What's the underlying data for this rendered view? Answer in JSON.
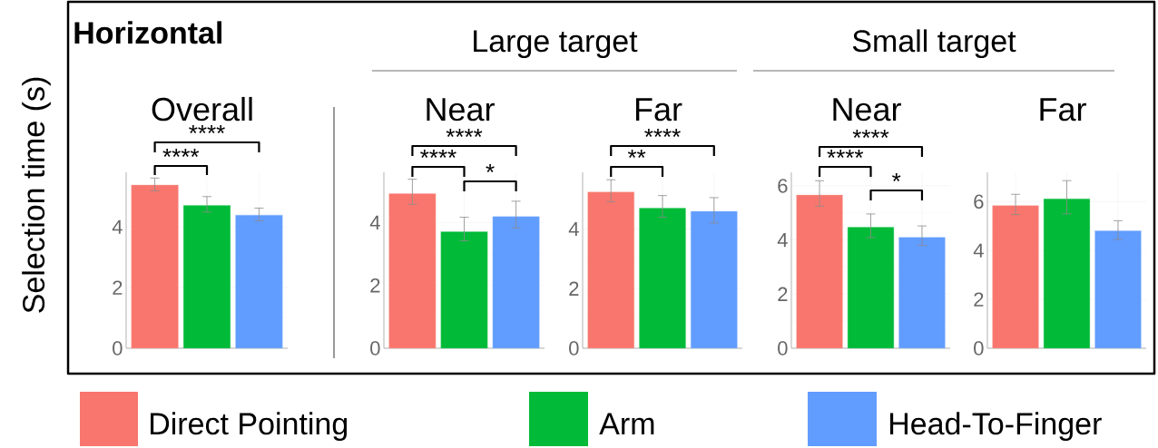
{
  "chart_data": [
    {
      "type": "bar",
      "title": "Overall",
      "ylabel": "Selection time (s)",
      "categories": [
        null
      ],
      "ylim": [
        0,
        5.8
      ],
      "yticks": [
        0,
        2,
        4
      ],
      "grid": true,
      "tick_labels": "y",
      "legend": "bottom",
      "annotations": [
        "Horizontal",
        "****",
        "****"
      ],
      "series": [
        {
          "name": "Direct Pointing",
          "color": "#f8766d",
          "values": [
            5.38
          ],
          "errors": [
            [
              5.19,
              5.61
            ]
          ]
        },
        {
          "name": "Arm",
          "color": "#00ba38",
          "values": [
            4.71
          ],
          "errors": [
            [
              4.49,
              5.0
            ]
          ]
        },
        {
          "name": "Head-To-Finger",
          "color": "#619cff",
          "values": [
            4.39
          ],
          "errors": [
            [
              4.2,
              4.62
            ]
          ]
        }
      ]
    },
    {
      "type": "bar",
      "title": "Near",
      "subtitle": "Large target",
      "categories": [
        null
      ],
      "ylim": [
        0,
        5.6
      ],
      "yticks": [
        0,
        2,
        4
      ],
      "grid": true,
      "tick_labels": "y",
      "annotations": [
        "****",
        "****",
        "*"
      ],
      "series": [
        {
          "color": "#f8766d",
          "values": [
            4.92
          ],
          "errors": [
            [
              4.58,
              5.38
            ]
          ]
        },
        {
          "color": "#00ba38",
          "values": [
            3.71
          ],
          "errors": [
            [
              3.42,
              4.17
            ]
          ]
        },
        {
          "color": "#619cff",
          "values": [
            4.19
          ],
          "errors": [
            [
              3.83,
              4.68
            ]
          ]
        }
      ]
    },
    {
      "type": "bar",
      "title": "Far",
      "categories": [
        null
      ],
      "ylim": [
        0,
        5.9
      ],
      "yticks": [
        0,
        2,
        4
      ],
      "grid": true,
      "tick_labels": "y",
      "annotations": [
        "****",
        "**"
      ],
      "series": [
        {
          "color": "#f8766d",
          "values": [
            5.24
          ],
          "errors": [
            [
              4.91,
              5.65
            ]
          ]
        },
        {
          "color": "#00ba38",
          "values": [
            4.7
          ],
          "errors": [
            [
              4.39,
              5.12
            ]
          ]
        },
        {
          "color": "#619cff",
          "values": [
            4.59
          ],
          "errors": [
            [
              4.2,
              5.05
            ]
          ]
        }
      ]
    },
    {
      "type": "bar",
      "title": "Near",
      "subtitle": "Small target",
      "categories": [
        null
      ],
      "ylim": [
        0,
        6.5
      ],
      "yticks": [
        0,
        2,
        4,
        6
      ],
      "grid": true,
      "tick_labels": "y",
      "annotations": [
        "****",
        "****",
        "*"
      ],
      "series": [
        {
          "color": "#f8766d",
          "values": [
            5.66
          ],
          "errors": [
            [
              5.25,
              6.19
            ]
          ]
        },
        {
          "color": "#00ba38",
          "values": [
            4.47
          ],
          "errors": [
            [
              4.09,
              4.96
            ]
          ]
        },
        {
          "color": "#619cff",
          "values": [
            4.1
          ],
          "errors": [
            [
              3.8,
              4.52
            ]
          ]
        }
      ]
    },
    {
      "type": "bar",
      "title": "Far",
      "categories": [
        null
      ],
      "ylim": [
        0,
        7.2
      ],
      "yticks": [
        0,
        2,
        4,
        6
      ],
      "grid": true,
      "tick_labels": "y",
      "series": [
        {
          "color": "#f8766d",
          "values": [
            5.84
          ],
          "errors": [
            [
              5.47,
              6.3
            ]
          ]
        },
        {
          "color": "#00ba38",
          "values": [
            6.11
          ],
          "errors": [
            [
              5.5,
              6.86
            ]
          ]
        },
        {
          "color": "#619cff",
          "values": [
            4.81
          ],
          "errors": [
            [
              4.45,
              5.22
            ]
          ]
        }
      ]
    }
  ]
}
